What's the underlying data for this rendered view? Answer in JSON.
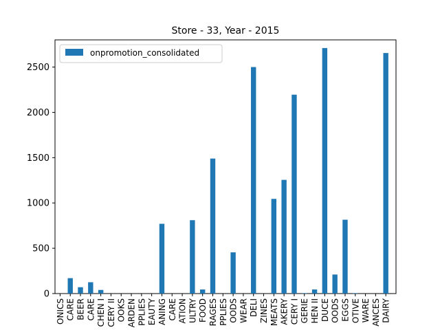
{
  "chart_data": {
    "type": "bar",
    "title": "Store - 33, Year - 2015",
    "xlabel": "",
    "ylabel": "",
    "ylim": [
      0,
      2800
    ],
    "yticks": [
      0,
      500,
      1000,
      1500,
      2000,
      2500
    ],
    "grid": false,
    "legend_position": "upper-left",
    "bar_color": "#1f77b4",
    "categories": [
      "ONICS",
      "CARE",
      "BEER",
      "CARE",
      "CHEN I",
      "CERY II",
      "OOKS",
      "ARDEN",
      "PPLIES",
      "EAUTY",
      "ANING",
      "CARE",
      "ATION",
      "ULTRY",
      "FOOD",
      "RAGES",
      "PPLIES",
      "OODS",
      "WEAR",
      "DELI",
      "ZINES",
      "MEATS",
      "AKERY",
      "CERY I",
      "GERIE",
      "HEN II",
      "DUCE",
      "OODS",
      "EGGS",
      "OTIVE",
      "WARE",
      "ANCES",
      "DAIRY"
    ],
    "series": [
      {
        "name": "onpromotion_consolidated",
        "values": [
          0,
          170,
          70,
          125,
          40,
          0,
          0,
          0,
          0,
          0,
          770,
          0,
          0,
          810,
          45,
          1490,
          0,
          455,
          0,
          2500,
          0,
          1045,
          1255,
          2195,
          5,
          45,
          2710,
          210,
          815,
          5,
          0,
          0,
          2655
        ]
      }
    ]
  }
}
